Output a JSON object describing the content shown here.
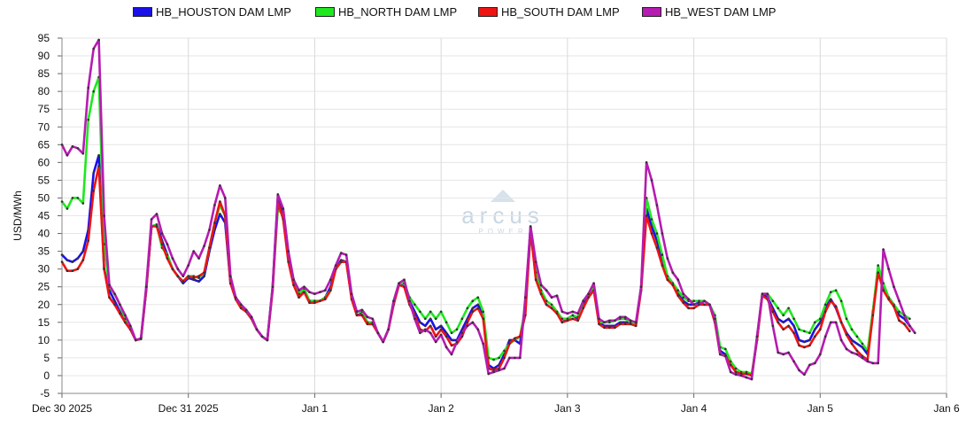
{
  "chart_data": {
    "type": "line",
    "ylabel": "USD/MWh",
    "ylim": [
      -5,
      95
    ],
    "yticks": [
      -5,
      0,
      5,
      10,
      15,
      20,
      25,
      30,
      35,
      40,
      45,
      50,
      55,
      60,
      65,
      70,
      75,
      80,
      85,
      90,
      95
    ],
    "xlim": [
      0,
      7.2
    ],
    "xticks": [
      {
        "value": 0,
        "label": "Dec 30 2025"
      },
      {
        "value": 1,
        "label": "Dec 31 2025"
      },
      {
        "value": 2,
        "label": "Jan 1"
      },
      {
        "value": 3,
        "label": "Jan 2"
      },
      {
        "value": 4,
        "label": "Jan 3"
      },
      {
        "value": 5,
        "label": "Jan 4"
      },
      {
        "value": 6,
        "label": "Jan 5"
      },
      {
        "value": 7,
        "label": "Jan 6"
      }
    ],
    "grid": true,
    "legend_position": "top",
    "series": [
      {
        "name": "HB_HOUSTON DAM LMP",
        "color": "#1a10e8",
        "values": [
          34,
          32.5,
          32,
          33,
          35,
          41,
          57,
          62,
          30,
          24,
          21,
          18,
          15,
          13,
          10,
          10.3,
          24,
          42,
          42.5,
          38,
          34,
          30,
          28,
          26,
          27.5,
          27,
          26.5,
          28,
          35,
          41,
          45.5,
          43,
          26,
          22,
          19.5,
          18,
          16,
          13,
          11,
          10,
          25,
          50,
          46,
          33,
          26,
          22.5,
          24,
          21,
          21,
          21,
          22,
          25,
          30,
          32.5,
          32,
          22,
          17,
          17.5,
          15,
          15,
          12,
          9.5,
          13,
          21,
          26,
          25,
          21,
          18,
          15,
          14,
          16,
          13,
          14,
          12,
          10,
          10,
          13,
          16,
          19,
          20,
          17,
          3,
          2,
          3,
          6,
          10,
          10,
          9,
          20,
          42,
          28,
          23,
          20,
          19,
          18,
          15,
          16,
          17,
          16,
          20,
          22,
          25,
          15,
          14,
          14,
          14,
          15,
          15,
          15,
          14.5,
          25,
          47,
          42,
          38,
          33,
          28,
          26,
          23,
          21,
          20,
          20,
          20.5,
          20,
          20,
          15,
          7,
          6,
          3,
          1,
          0.5,
          0.5,
          0,
          10,
          23,
          22,
          19,
          16,
          15,
          16,
          14,
          10,
          9.5,
          10,
          13,
          15,
          19,
          21.5,
          19,
          15,
          12,
          10,
          9,
          8,
          6,
          18,
          30,
          25,
          22,
          20,
          17,
          16,
          14
        ]
      },
      {
        "name": "HB_NORTH DAM LMP",
        "color": "#1fe81f",
        "values": [
          49,
          47,
          50,
          50,
          48.5,
          72,
          80,
          84,
          37,
          25,
          23,
          20,
          16,
          13,
          10,
          10.3,
          24,
          42,
          42.5,
          36,
          34,
          30,
          28,
          26.5,
          28,
          28,
          27.5,
          29,
          36,
          43,
          48,
          45,
          27,
          22,
          20,
          18,
          16,
          13,
          11,
          10,
          25,
          47,
          45,
          34,
          27,
          23,
          24.5,
          21,
          21,
          21,
          22,
          24,
          30,
          32,
          32,
          22,
          18,
          18,
          15,
          15,
          12,
          9.5,
          13,
          21,
          26,
          26,
          22,
          20,
          18,
          16,
          18,
          16,
          18,
          15,
          12,
          13,
          16,
          19,
          21,
          22,
          18,
          5,
          4.5,
          5,
          7,
          9,
          10,
          11,
          19,
          40,
          29,
          24,
          21,
          20,
          18,
          16,
          16,
          17,
          16.5,
          21,
          23,
          25,
          15,
          15,
          15,
          15.5,
          16,
          16,
          15,
          14.5,
          25,
          50,
          44,
          40,
          34,
          28,
          26,
          24,
          22,
          21,
          21,
          21,
          21,
          20,
          17,
          8,
          7.5,
          4,
          2,
          1,
          1,
          0.5,
          10,
          23,
          23,
          21,
          19,
          17,
          19,
          16,
          13,
          12.5,
          12,
          15,
          16,
          20,
          23.5,
          24,
          21,
          16,
          13,
          11,
          9,
          7,
          18,
          31,
          26,
          22,
          20,
          18,
          17,
          16
        ]
      },
      {
        "name": "HB_SOUTH DAM LMP",
        "color": "#ee1414",
        "values": [
          32,
          29.5,
          29.5,
          30,
          32.5,
          38,
          52,
          59,
          30,
          22,
          20,
          17.5,
          15,
          13,
          10,
          10.3,
          24,
          42,
          42,
          37,
          33,
          30,
          28,
          26.5,
          28,
          27.5,
          28,
          29,
          36,
          43,
          49,
          45,
          26,
          21.5,
          19,
          18,
          16,
          13,
          11,
          10,
          24,
          49,
          44,
          32,
          25.5,
          22,
          23.5,
          20.5,
          20.5,
          21,
          21.5,
          24,
          30,
          32,
          32,
          21.5,
          17,
          17,
          14.5,
          14.5,
          12,
          9.5,
          13,
          20,
          25.5,
          25,
          20,
          17,
          13,
          12.5,
          14,
          11,
          13,
          11,
          8.5,
          9,
          11,
          15,
          18,
          19,
          16,
          2,
          1.5,
          2,
          5,
          9,
          10.5,
          11,
          17,
          41,
          27,
          23,
          20,
          19,
          17.5,
          15,
          15.5,
          16,
          15.5,
          19,
          22,
          24,
          14.5,
          13.5,
          13.5,
          13.5,
          14.5,
          14.5,
          14.5,
          14,
          24,
          45,
          40,
          36,
          31,
          27,
          25.5,
          22.5,
          20.5,
          19,
          19,
          20,
          20,
          20,
          15,
          6,
          5.5,
          3,
          1,
          0.5,
          0.5,
          0,
          10,
          22.5,
          21.5,
          18,
          15,
          13,
          14,
          12,
          8.5,
          8,
          8.5,
          11,
          13,
          18,
          21,
          19.5,
          15,
          11.5,
          9,
          7,
          5.5,
          4.5,
          17,
          29,
          24,
          21.5,
          19.5,
          15.5,
          14.5,
          12.5
        ]
      },
      {
        "name": "HB_WEST DAM LMP",
        "color": "#b51cb0",
        "values": [
          65,
          62,
          64.5,
          64,
          62.5,
          81,
          92,
          94.5,
          45,
          25.5,
          23,
          20,
          17,
          14,
          10,
          10.5,
          25,
          44,
          45.5,
          40,
          37,
          33,
          30,
          28,
          31,
          35,
          33,
          36.5,
          41,
          48,
          53.5,
          50,
          28,
          22,
          20,
          18.5,
          16.5,
          13,
          11,
          10,
          25,
          51,
          47,
          35,
          27,
          24,
          25,
          23.5,
          23,
          23.5,
          24,
          27,
          31,
          34.5,
          34,
          23,
          18,
          18.5,
          16.5,
          16,
          12,
          9.5,
          13,
          21,
          26,
          27,
          21,
          16,
          12,
          13,
          12,
          9.5,
          11.5,
          8,
          6,
          9.5,
          12,
          14,
          15,
          13,
          9,
          0.5,
          1,
          1.5,
          2,
          5,
          5,
          5,
          22,
          42,
          32,
          25.5,
          24,
          22,
          22.5,
          18,
          17.5,
          18,
          17.5,
          21,
          23,
          26,
          16,
          15,
          15.5,
          15.5,
          16.5,
          16.5,
          15.5,
          15,
          25,
          60,
          55,
          48,
          40,
          33,
          29,
          27,
          23,
          21.5,
          20,
          20,
          21,
          20,
          16,
          6,
          5.5,
          1,
          0.3,
          0,
          -0.5,
          -1,
          11,
          23,
          23,
          14,
          6.5,
          6,
          6.5,
          4,
          1.5,
          0.3,
          3,
          3.5,
          6,
          11,
          15,
          15,
          10,
          7.5,
          6.5,
          6,
          5,
          4,
          3.5,
          3.5,
          35.5,
          30,
          25,
          21,
          17,
          14,
          12
        ]
      }
    ]
  },
  "watermark": {
    "text": "arcus",
    "subtext": "POWER"
  }
}
